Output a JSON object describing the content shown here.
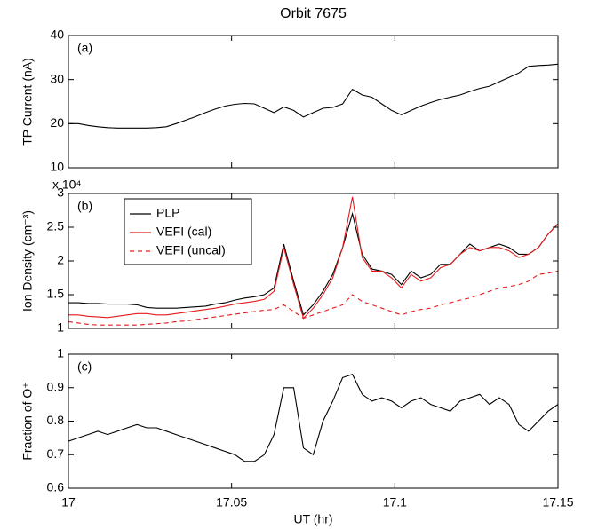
{
  "chart_data": [
    {
      "type": "line",
      "title": "Orbit 7675",
      "label": "(a)",
      "ylabel": "TP Current (nA)",
      "xlim": [
        17,
        17.15
      ],
      "xticks": [
        17,
        17.05,
        17.1,
        17.15
      ],
      "ylim": [
        10,
        40
      ],
      "yticks": [
        10,
        20,
        30,
        40
      ],
      "x": [
        17,
        17.003,
        17.006,
        17.009,
        17.012,
        17.015,
        17.018,
        17.021,
        17.024,
        17.027,
        17.03,
        17.033,
        17.036,
        17.039,
        17.042,
        17.045,
        17.048,
        17.051,
        17.054,
        17.057,
        17.06,
        17.063,
        17.066,
        17.069,
        17.072,
        17.075,
        17.078,
        17.081,
        17.084,
        17.087,
        17.09,
        17.093,
        17.096,
        17.099,
        17.102,
        17.105,
        17.108,
        17.111,
        17.114,
        17.117,
        17.12,
        17.123,
        17.126,
        17.129,
        17.132,
        17.135,
        17.138,
        17.141,
        17.144,
        17.147,
        17.15
      ],
      "series": [
        {
          "color": "#000000",
          "dashed": false,
          "values": [
            20,
            20,
            19.6,
            19.3,
            19.1,
            19,
            19,
            19,
            19,
            19.1,
            19.3,
            20,
            20.8,
            21.6,
            22.5,
            23.3,
            24,
            24.4,
            24.6,
            24.5,
            23.5,
            22.5,
            23.8,
            23,
            21.5,
            22.5,
            23.5,
            23.7,
            24.5,
            27.8,
            26.5,
            26,
            24.5,
            23,
            22,
            23,
            24,
            24.8,
            25.5,
            26,
            26.5,
            27.3,
            28,
            28.5,
            29.5,
            30.5,
            31.5,
            33,
            33.2,
            33.3,
            33.5
          ]
        }
      ]
    },
    {
      "type": "line",
      "label": "(b)",
      "ylabel": "Ion Density (cm⁻³)",
      "multiplier": "x 10⁴",
      "xlim": [
        17,
        17.15
      ],
      "xticks": [
        17,
        17.05,
        17.1,
        17.15
      ],
      "ylim": [
        1,
        3
      ],
      "yticks": [
        1,
        1.5,
        2,
        2.5,
        3
      ],
      "legend": "upper left",
      "x": [
        17,
        17.003,
        17.006,
        17.009,
        17.012,
        17.015,
        17.018,
        17.021,
        17.024,
        17.027,
        17.03,
        17.033,
        17.036,
        17.039,
        17.042,
        17.045,
        17.048,
        17.051,
        17.054,
        17.057,
        17.06,
        17.063,
        17.066,
        17.069,
        17.072,
        17.075,
        17.078,
        17.081,
        17.084,
        17.087,
        17.09,
        17.093,
        17.096,
        17.099,
        17.102,
        17.105,
        17.108,
        17.111,
        17.114,
        17.117,
        17.12,
        17.123,
        17.126,
        17.129,
        17.132,
        17.135,
        17.138,
        17.141,
        17.144,
        17.147,
        17.15
      ],
      "series": [
        {
          "name": "PLP",
          "color": "#000000",
          "dashed": false,
          "values": [
            1.38,
            1.38,
            1.37,
            1.37,
            1.36,
            1.36,
            1.36,
            1.35,
            1.31,
            1.3,
            1.3,
            1.3,
            1.31,
            1.32,
            1.33,
            1.36,
            1.38,
            1.42,
            1.45,
            1.47,
            1.5,
            1.6,
            2.25,
            1.7,
            1.2,
            1.35,
            1.55,
            1.8,
            2.2,
            2.7,
            2.1,
            1.88,
            1.85,
            1.8,
            1.65,
            1.85,
            1.75,
            1.8,
            1.95,
            1.95,
            2.1,
            2.25,
            2.15,
            2.2,
            2.25,
            2.2,
            2.1,
            2.1,
            2.2,
            2.4,
            2.55
          ]
        },
        {
          "name": "VEFI (cal)",
          "color": "#e41a1c",
          "dashed": false,
          "values": [
            1.2,
            1.2,
            1.18,
            1.17,
            1.16,
            1.18,
            1.2,
            1.22,
            1.22,
            1.2,
            1.2,
            1.22,
            1.24,
            1.26,
            1.28,
            1.3,
            1.33,
            1.36,
            1.38,
            1.4,
            1.43,
            1.55,
            2.2,
            1.65,
            1.15,
            1.3,
            1.5,
            1.75,
            2.2,
            2.95,
            2.05,
            1.85,
            1.85,
            1.75,
            1.6,
            1.8,
            1.7,
            1.75,
            1.9,
            1.95,
            2.1,
            2.2,
            2.15,
            2.2,
            2.2,
            2.15,
            2.05,
            2.1,
            2.2,
            2.4,
            2.55
          ]
        },
        {
          "name": "VEFI (uncal)",
          "color": "#e41a1c",
          "dashed": true,
          "values": [
            1.1,
            1.08,
            1.06,
            1.05,
            1.05,
            1.05,
            1.05,
            1.05,
            1.06,
            1.07,
            1.08,
            1.1,
            1.11,
            1.13,
            1.15,
            1.17,
            1.19,
            1.21,
            1.23,
            1.25,
            1.27,
            1.28,
            1.35,
            1.25,
            1.15,
            1.2,
            1.25,
            1.3,
            1.35,
            1.5,
            1.4,
            1.35,
            1.3,
            1.25,
            1.2,
            1.25,
            1.28,
            1.3,
            1.35,
            1.38,
            1.42,
            1.45,
            1.5,
            1.55,
            1.6,
            1.62,
            1.65,
            1.7,
            1.8,
            1.82,
            1.85
          ]
        }
      ]
    },
    {
      "type": "line",
      "label": "(c)",
      "ylabel": "Fraction of O⁺",
      "xlabel": "UT (hr)",
      "xlim": [
        17,
        17.15
      ],
      "xticks": [
        17,
        17.05,
        17.1,
        17.15
      ],
      "ylim": [
        0.6,
        1
      ],
      "yticks": [
        0.6,
        0.7,
        0.8,
        0.9,
        1
      ],
      "x": [
        17,
        17.003,
        17.006,
        17.009,
        17.012,
        17.015,
        17.018,
        17.021,
        17.024,
        17.027,
        17.03,
        17.033,
        17.036,
        17.039,
        17.042,
        17.045,
        17.048,
        17.051,
        17.054,
        17.057,
        17.06,
        17.063,
        17.066,
        17.069,
        17.072,
        17.075,
        17.078,
        17.081,
        17.084,
        17.087,
        17.09,
        17.093,
        17.096,
        17.099,
        17.102,
        17.105,
        17.108,
        17.111,
        17.114,
        17.117,
        17.12,
        17.123,
        17.126,
        17.129,
        17.132,
        17.135,
        17.138,
        17.141,
        17.144,
        17.147,
        17.15
      ],
      "series": [
        {
          "color": "#000000",
          "dashed": false,
          "values": [
            0.74,
            0.75,
            0.76,
            0.77,
            0.76,
            0.77,
            0.78,
            0.79,
            0.78,
            0.78,
            0.77,
            0.76,
            0.75,
            0.74,
            0.73,
            0.72,
            0.71,
            0.7,
            0.68,
            0.68,
            0.7,
            0.76,
            0.9,
            0.9,
            0.72,
            0.7,
            0.8,
            0.86,
            0.93,
            0.94,
            0.88,
            0.86,
            0.87,
            0.86,
            0.84,
            0.86,
            0.87,
            0.85,
            0.84,
            0.83,
            0.86,
            0.87,
            0.88,
            0.85,
            0.87,
            0.85,
            0.79,
            0.77,
            0.8,
            0.83,
            0.85
          ]
        }
      ]
    }
  ]
}
